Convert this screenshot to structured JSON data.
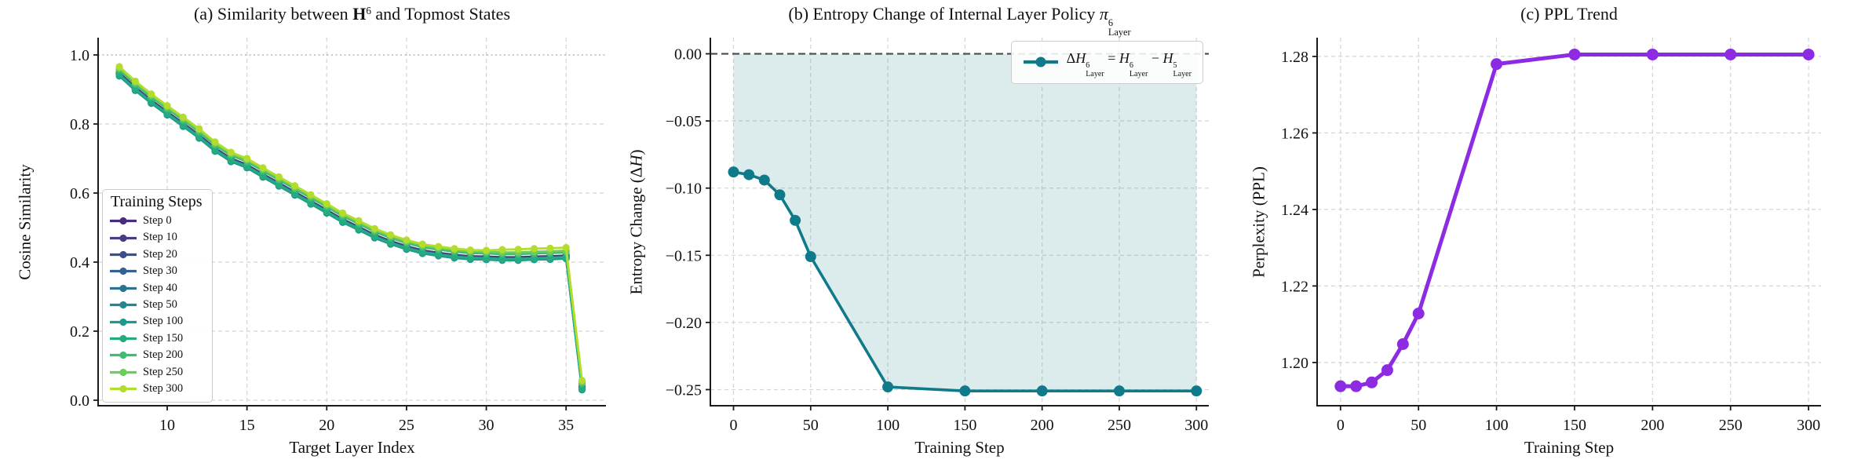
{
  "figure": {
    "background": "#ffffff",
    "text_color": "#111111",
    "grid_color": "#d4d4d4",
    "spine_color": "#1a1a1a"
  },
  "chart_data": [
    {
      "id": "a",
      "type": "line",
      "title": "(a) Similarity between **H**^{6} and Topmost States",
      "xlabel": "Target Layer Index",
      "ylabel": "Cosine Similarity",
      "xlim": [
        5.67,
        37.5
      ],
      "ylim": [
        -0.016,
        1.05
      ],
      "xticks": [
        10,
        15,
        20,
        25,
        30,
        35
      ],
      "xtick_labels": [
        "10",
        "15",
        "20",
        "25",
        "30",
        "35"
      ],
      "yticks": [
        0.0,
        0.2,
        0.4,
        0.6,
        0.8,
        1.0
      ],
      "ytick_labels": [
        "0.0",
        "0.2",
        "0.4",
        "0.6",
        "0.8",
        "1.0"
      ],
      "grid": true,
      "ref_lines": [
        {
          "name": "similarity-one-line",
          "y": 1.0,
          "color": "#b5b5b5",
          "dash": "2,3.5",
          "width": 1.6
        }
      ],
      "line_width": 2.8,
      "marker_radius": 4.6,
      "legend": {
        "title": "Training Steps",
        "position": "lower-left"
      },
      "x": [
        7,
        8,
        9,
        10,
        11,
        12,
        13,
        14,
        15,
        16,
        17,
        18,
        19,
        20,
        21,
        22,
        23,
        24,
        25,
        26,
        27,
        28,
        29,
        30,
        31,
        32,
        33,
        34,
        35,
        36
      ],
      "series": [
        {
          "name": "Step 0",
          "color": "#472d7b",
          "values": [
            0.948,
            0.906,
            0.869,
            0.835,
            0.802,
            0.768,
            0.73,
            0.7,
            0.682,
            0.655,
            0.629,
            0.603,
            0.577,
            0.551,
            0.524,
            0.502,
            0.479,
            0.461,
            0.446,
            0.434,
            0.427,
            0.421,
            0.417,
            0.416,
            0.414,
            0.414,
            0.416,
            0.417,
            0.419,
            0.039
          ]
        },
        {
          "name": "Step 10",
          "color": "#433e85",
          "values": [
            0.946,
            0.904,
            0.867,
            0.833,
            0.8,
            0.766,
            0.728,
            0.698,
            0.68,
            0.653,
            0.627,
            0.601,
            0.575,
            0.549,
            0.522,
            0.5,
            0.477,
            0.459,
            0.444,
            0.432,
            0.425,
            0.419,
            0.415,
            0.414,
            0.412,
            0.412,
            0.414,
            0.415,
            0.417,
            0.037
          ]
        },
        {
          "name": "Step 20",
          "color": "#3d4e8a",
          "values": [
            0.945,
            0.903,
            0.866,
            0.832,
            0.799,
            0.765,
            0.727,
            0.697,
            0.679,
            0.652,
            0.626,
            0.6,
            0.574,
            0.548,
            0.521,
            0.499,
            0.476,
            0.458,
            0.443,
            0.431,
            0.424,
            0.418,
            0.414,
            0.413,
            0.411,
            0.411,
            0.413,
            0.414,
            0.416,
            0.036
          ]
        },
        {
          "name": "Step 30",
          "color": "#34618d",
          "values": [
            0.944,
            0.902,
            0.865,
            0.831,
            0.798,
            0.764,
            0.726,
            0.696,
            0.678,
            0.651,
            0.625,
            0.599,
            0.573,
            0.547,
            0.52,
            0.498,
            0.475,
            0.457,
            0.442,
            0.43,
            0.423,
            0.417,
            0.413,
            0.412,
            0.41,
            0.41,
            0.412,
            0.413,
            0.415,
            0.035
          ]
        },
        {
          "name": "Step 40",
          "color": "#2b748e",
          "values": [
            0.942,
            0.9,
            0.863,
            0.829,
            0.796,
            0.762,
            0.724,
            0.694,
            0.676,
            0.649,
            0.623,
            0.597,
            0.571,
            0.545,
            0.518,
            0.496,
            0.473,
            0.455,
            0.44,
            0.428,
            0.421,
            0.415,
            0.411,
            0.41,
            0.408,
            0.408,
            0.41,
            0.411,
            0.413,
            0.033
          ]
        },
        {
          "name": "Step 50",
          "color": "#24878e",
          "values": [
            0.941,
            0.899,
            0.862,
            0.828,
            0.795,
            0.761,
            0.723,
            0.693,
            0.675,
            0.648,
            0.622,
            0.596,
            0.57,
            0.544,
            0.517,
            0.495,
            0.472,
            0.454,
            0.439,
            0.427,
            0.42,
            0.414,
            0.41,
            0.409,
            0.407,
            0.407,
            0.409,
            0.41,
            0.412,
            0.032
          ]
        },
        {
          "name": "Step 100",
          "color": "#1f998a",
          "values": [
            0.939,
            0.897,
            0.86,
            0.826,
            0.793,
            0.759,
            0.721,
            0.691,
            0.673,
            0.646,
            0.62,
            0.594,
            0.568,
            0.542,
            0.515,
            0.493,
            0.47,
            0.452,
            0.437,
            0.425,
            0.418,
            0.412,
            0.408,
            0.407,
            0.405,
            0.405,
            0.407,
            0.408,
            0.41,
            0.03
          ]
        },
        {
          "name": "Step 150",
          "color": "#25ab82",
          "values": [
            0.943,
            0.901,
            0.864,
            0.83,
            0.797,
            0.763,
            0.725,
            0.695,
            0.677,
            0.65,
            0.624,
            0.598,
            0.572,
            0.546,
            0.519,
            0.497,
            0.474,
            0.456,
            0.441,
            0.429,
            0.422,
            0.416,
            0.412,
            0.411,
            0.409,
            0.409,
            0.411,
            0.412,
            0.414,
            0.034
          ]
        },
        {
          "name": "Step 200",
          "color": "#40bd72",
          "values": [
            0.957,
            0.915,
            0.878,
            0.844,
            0.811,
            0.777,
            0.739,
            0.709,
            0.691,
            0.664,
            0.638,
            0.612,
            0.586,
            0.56,
            0.533,
            0.511,
            0.488,
            0.47,
            0.455,
            0.443,
            0.436,
            0.43,
            0.426,
            0.425,
            0.423,
            0.423,
            0.425,
            0.426,
            0.428,
            0.048
          ]
        },
        {
          "name": "Step 250",
          "color": "#6ccd5a",
          "values": [
            0.962,
            0.92,
            0.883,
            0.849,
            0.816,
            0.782,
            0.744,
            0.714,
            0.696,
            0.669,
            0.643,
            0.617,
            0.591,
            0.565,
            0.538,
            0.516,
            0.493,
            0.475,
            0.46,
            0.448,
            0.441,
            0.435,
            0.431,
            0.43,
            0.428,
            0.428,
            0.43,
            0.431,
            0.433,
            0.053
          ]
        },
        {
          "name": "Step 300",
          "color": "#b2dd2d",
          "values": [
            0.966,
            0.924,
            0.887,
            0.853,
            0.82,
            0.786,
            0.748,
            0.718,
            0.7,
            0.673,
            0.647,
            0.621,
            0.595,
            0.569,
            0.542,
            0.52,
            0.497,
            0.479,
            0.464,
            0.452,
            0.445,
            0.439,
            0.435,
            0.434,
            0.436,
            0.437,
            0.439,
            0.44,
            0.442,
            0.057
          ]
        }
      ]
    },
    {
      "id": "b",
      "type": "line",
      "title": "(b) Entropy Change of Internal Layer Policy *π*^{6}_{Layer}",
      "xlabel": "Training Step",
      "ylabel": "Entropy Change (Δ*H*)",
      "xlim": [
        -15,
        308
      ],
      "ylim": [
        -0.262,
        0.012
      ],
      "xticks": [
        0,
        50,
        100,
        150,
        200,
        250,
        300
      ],
      "xtick_labels": [
        "0",
        "50",
        "100",
        "150",
        "200",
        "250",
        "300"
      ],
      "yticks": [
        0.0,
        -0.05,
        -0.1,
        -0.15,
        -0.2,
        -0.25
      ],
      "ytick_labels": [
        "0.00",
        "−0.05",
        "−0.10",
        "−0.15",
        "−0.20",
        "−0.25"
      ],
      "grid": true,
      "ref_lines": [
        {
          "name": "zero-line",
          "y": 0,
          "color": "#4a4a4a",
          "dash": "9,5",
          "width": 2.2
        }
      ],
      "line_width": 3.6,
      "marker_radius": 7,
      "legend": {
        "position": "upper-right"
      },
      "x": [
        0,
        10,
        20,
        30,
        40,
        50,
        100,
        150,
        200,
        250,
        300
      ],
      "series": [
        {
          "name": "Δ*H*^{6}_{Layer} = *H*^{6}_{Layer} − *H*^{5}_{Layer}",
          "color": "#0f7b8a",
          "fill_to_zero": true,
          "fill_color": "rgba(23,128,131,0.15)",
          "values": [
            -0.088,
            -0.09,
            -0.094,
            -0.105,
            -0.124,
            -0.151,
            -0.248,
            -0.251,
            -0.251,
            -0.251,
            -0.251
          ]
        }
      ]
    },
    {
      "id": "c",
      "type": "line",
      "title": "(c) PPL Trend",
      "xlabel": "Training Step",
      "ylabel": "Perplexity (PPL)",
      "xlim": [
        -15,
        308
      ],
      "ylim": [
        1.1887,
        1.2849
      ],
      "xticks": [
        0,
        50,
        100,
        150,
        200,
        250,
        300
      ],
      "xtick_labels": [
        "0",
        "50",
        "100",
        "150",
        "200",
        "250",
        "300"
      ],
      "yticks": [
        1.2,
        1.22,
        1.24,
        1.26,
        1.28
      ],
      "ytick_labels": [
        "1.20",
        "1.22",
        "1.24",
        "1.26",
        "1.28"
      ],
      "grid": true,
      "ref_lines": [],
      "line_width": 5,
      "marker_radius": 7.5,
      "x": [
        0,
        10,
        20,
        30,
        40,
        50,
        100,
        150,
        200,
        250,
        300
      ],
      "series": [
        {
          "name": "PPL",
          "color": "#8d2be2",
          "values": [
            1.1938,
            1.1938,
            1.1948,
            1.198,
            1.2048,
            1.2128,
            1.278,
            1.2805,
            1.2805,
            1.2805,
            1.2805
          ]
        }
      ]
    }
  ]
}
